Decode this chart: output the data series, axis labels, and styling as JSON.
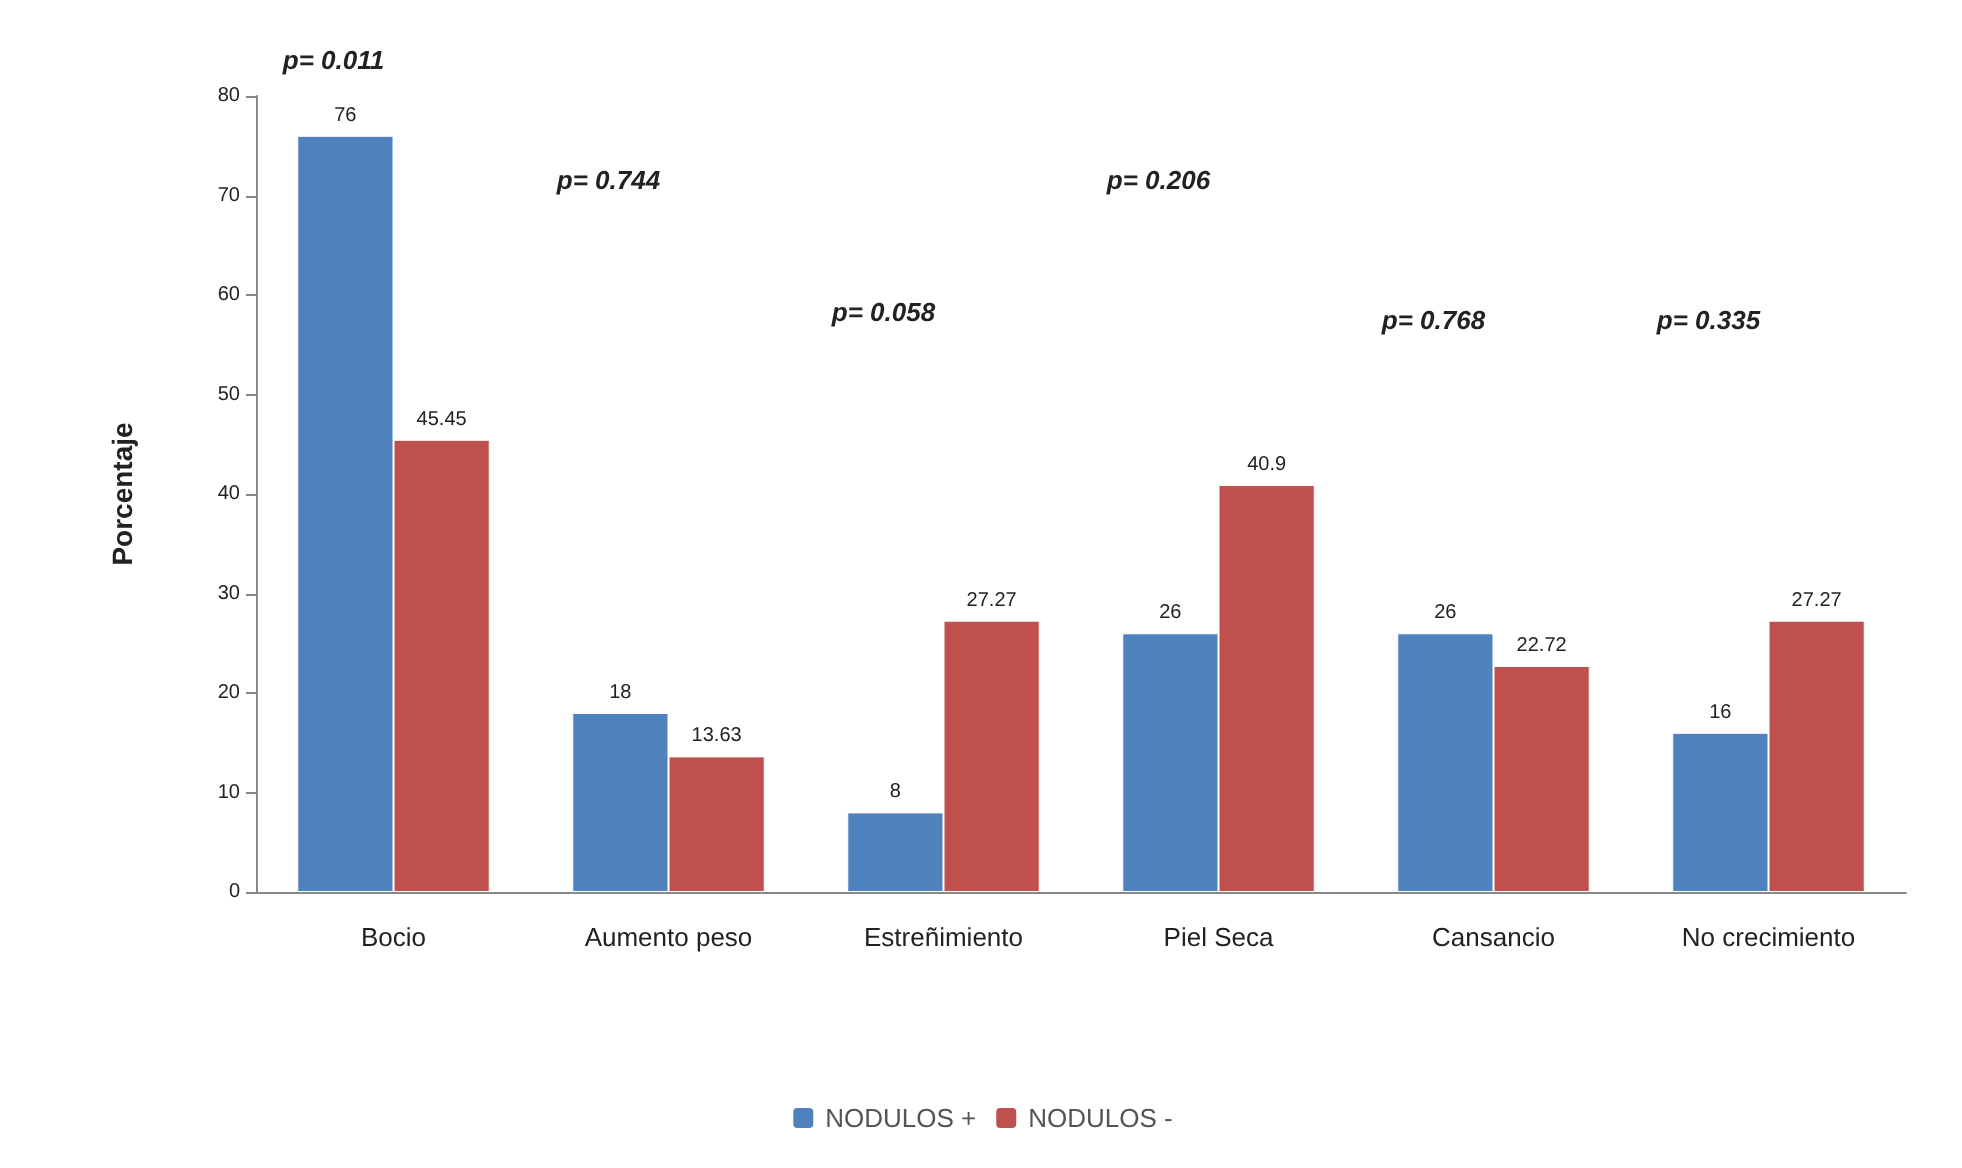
{
  "chart_data": {
    "type": "bar",
    "ylabel": "Porcentaje",
    "categories": [
      "Bocio",
      "Aumento peso",
      "Estreñimiento",
      "Piel Seca",
      "Cansancio",
      "No crecimiento"
    ],
    "series": [
      {
        "name": "NODULOS +",
        "color": "#4f81bd",
        "values": [
          76,
          18,
          8,
          26,
          26,
          16
        ]
      },
      {
        "name": "NODULOS -",
        "color": "#c0504d",
        "values": [
          45.45,
          13.63,
          27.27,
          40.9,
          22.72,
          27.27
        ]
      }
    ],
    "ylim": [
      0,
      80
    ],
    "yticks": [
      0,
      10,
      20,
      30,
      40,
      50,
      60,
      70,
      80
    ],
    "grid": false,
    "legend": "bottom",
    "data_labels": true,
    "annotations": [
      "p= 0.011",
      "p= 0.744",
      "p= 0.058",
      "p= 0.206",
      "p= 0.768",
      "p= 0.335"
    ]
  }
}
